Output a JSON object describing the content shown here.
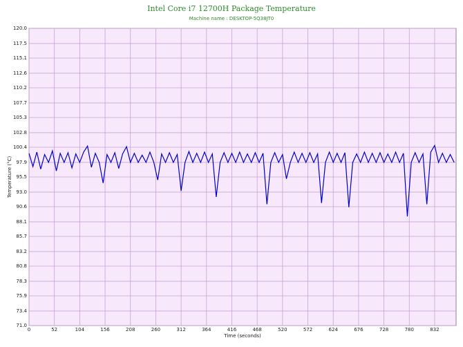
{
  "chart_data": {
    "type": "line",
    "title": "Intel Core i7 12700H Package Temperature",
    "subtitle": "Machine name : DESKTOP-5Q38JT0",
    "x_label": "Time (seconds)",
    "y_label": "Temperature (°C)",
    "color": "#0000cc",
    "grid": true,
    "xlim": [
      0,
      876
    ],
    "xticks": [
      0,
      52,
      104,
      156,
      208,
      260,
      312,
      364,
      416,
      468,
      520,
      572,
      624,
      676,
      728,
      780,
      832
    ],
    "ylim": [
      71,
      120
    ],
    "yticks": [
      {
        "value": 71,
        "label": "71.0"
      },
      {
        "value": 73.4,
        "label": "73.4"
      },
      {
        "value": 75.9,
        "label": "75.9"
      },
      {
        "value": 78.3,
        "label": "78.3"
      },
      {
        "value": 80.8,
        "label": "80.8"
      },
      {
        "value": 83.2,
        "label": "83.2"
      },
      {
        "value": 85.7,
        "label": "85.7"
      },
      {
        "value": 88.1,
        "label": "88.1"
      },
      {
        "value": 90.6,
        "label": "90.6"
      },
      {
        "value": 93,
        "label": "93.0"
      },
      {
        "value": 95.5,
        "label": "95.5"
      },
      {
        "value": 97.9,
        "label": "97.9"
      },
      {
        "value": 100.4,
        "label": "100.4"
      },
      {
        "value": 102.8,
        "label": "102.8"
      },
      {
        "value": 105.3,
        "label": "105.3"
      },
      {
        "value": 107.7,
        "label": "107.7"
      },
      {
        "value": 110.2,
        "label": "110.2"
      },
      {
        "value": 112.6,
        "label": "112.6"
      },
      {
        "value": 115.1,
        "label": "115.1"
      },
      {
        "value": 117.5,
        "label": "117.5"
      },
      {
        "value": 120,
        "label": "120.0"
      }
    ],
    "x": [
      0,
      8,
      16,
      24,
      32,
      40,
      48,
      56,
      64,
      72,
      80,
      88,
      96,
      104,
      112,
      120,
      128,
      136,
      144,
      152,
      160,
      168,
      176,
      184,
      192,
      200,
      208,
      216,
      224,
      232,
      240,
      248,
      256,
      264,
      272,
      280,
      288,
      296,
      304,
      312,
      320,
      328,
      336,
      344,
      352,
      360,
      368,
      376,
      384,
      392,
      400,
      408,
      416,
      424,
      432,
      440,
      448,
      456,
      464,
      472,
      480,
      488,
      496,
      504,
      512,
      520,
      528,
      536,
      544,
      552,
      560,
      568,
      576,
      584,
      592,
      600,
      608,
      616,
      624,
      632,
      640,
      648,
      656,
      664,
      672,
      680,
      688,
      696,
      704,
      712,
      720,
      728,
      736,
      744,
      752,
      760,
      768,
      776,
      784,
      792,
      800,
      808,
      816,
      824,
      832,
      840,
      848,
      856,
      864,
      872
    ],
    "values": [
      99.4,
      97.2,
      99.6,
      96.8,
      99.2,
      97.9,
      99.8,
      96.5,
      99.4,
      97.9,
      99.5,
      97.0,
      99.3,
      97.9,
      99.6,
      100.6,
      97.1,
      99.4,
      97.9,
      94.5,
      99.2,
      97.9,
      99.5,
      96.9,
      99.3,
      100.5,
      97.9,
      99.4,
      97.9,
      99.1,
      97.9,
      99.6,
      97.9,
      95.0,
      99.3,
      97.9,
      99.5,
      97.9,
      99.2,
      93.2,
      97.9,
      99.7,
      97.9,
      99.4,
      97.9,
      99.6,
      97.9,
      99.3,
      92.2,
      97.9,
      99.5,
      97.9,
      99.4,
      97.9,
      99.6,
      97.9,
      99.3,
      97.9,
      99.5,
      97.9,
      99.4,
      91.0,
      97.9,
      99.5,
      97.9,
      99.2,
      95.2,
      97.9,
      99.6,
      97.9,
      99.4,
      97.9,
      99.5,
      97.9,
      99.3,
      91.2,
      97.9,
      99.6,
      97.9,
      99.4,
      97.9,
      99.5,
      90.5,
      97.9,
      99.3,
      97.9,
      99.6,
      97.9,
      99.4,
      97.9,
      99.5,
      97.9,
      99.3,
      97.9,
      99.6,
      97.9,
      99.4,
      89.0,
      97.9,
      99.5,
      97.9,
      99.3,
      91.0,
      99.6,
      100.7,
      97.9,
      99.4,
      97.9,
      99.2,
      97.9
    ]
  }
}
